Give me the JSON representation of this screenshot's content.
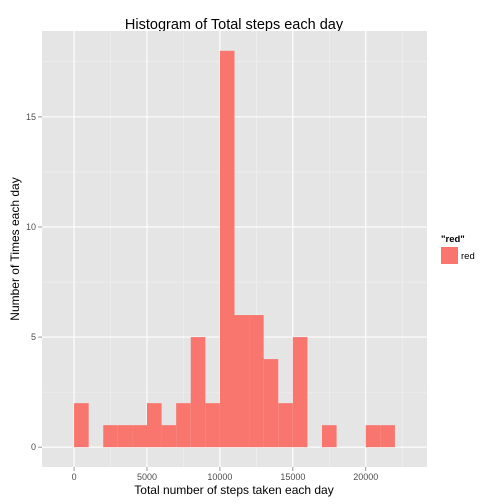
{
  "chart_data": {
    "type": "bar",
    "title": "Histogram of Total steps each day",
    "xlabel": "Total number of steps taken each day",
    "ylabel": "Number of Times each day",
    "bin_width": 1000,
    "bins": [
      {
        "start": 0,
        "count": 2
      },
      {
        "start": 1000,
        "count": 0
      },
      {
        "start": 2000,
        "count": 1
      },
      {
        "start": 3000,
        "count": 1
      },
      {
        "start": 4000,
        "count": 1
      },
      {
        "start": 5000,
        "count": 2
      },
      {
        "start": 6000,
        "count": 1
      },
      {
        "start": 7000,
        "count": 2
      },
      {
        "start": 8000,
        "count": 5
      },
      {
        "start": 9000,
        "count": 2
      },
      {
        "start": 10000,
        "count": 18
      },
      {
        "start": 11000,
        "count": 6
      },
      {
        "start": 12000,
        "count": 6
      },
      {
        "start": 13000,
        "count": 4
      },
      {
        "start": 14000,
        "count": 2
      },
      {
        "start": 15000,
        "count": 5
      },
      {
        "start": 16000,
        "count": 0
      },
      {
        "start": 17000,
        "count": 1
      },
      {
        "start": 18000,
        "count": 0
      },
      {
        "start": 19000,
        "count": 0
      },
      {
        "start": 20000,
        "count": 1
      },
      {
        "start": 21000,
        "count": 1
      }
    ],
    "xlim": [
      -2200,
      24200
    ],
    "ylim": [
      -0.9,
      18.9
    ],
    "x_ticks": [
      0,
      5000,
      10000,
      15000,
      20000
    ],
    "x_tick_labels": [
      "0",
      "5000",
      "10000",
      "15000",
      "20000"
    ],
    "y_ticks": [
      0,
      5,
      10,
      15
    ],
    "y_tick_labels": [
      "0",
      "5",
      "10",
      "15"
    ],
    "grid": true,
    "bar_color": "#f8766d",
    "panel_background": "#e5e5e5",
    "grid_color": "#ffffff",
    "legend": {
      "title": "\"red\"",
      "position": "right",
      "entries": [
        {
          "label": "red",
          "color": "#f8766d"
        }
      ]
    }
  }
}
